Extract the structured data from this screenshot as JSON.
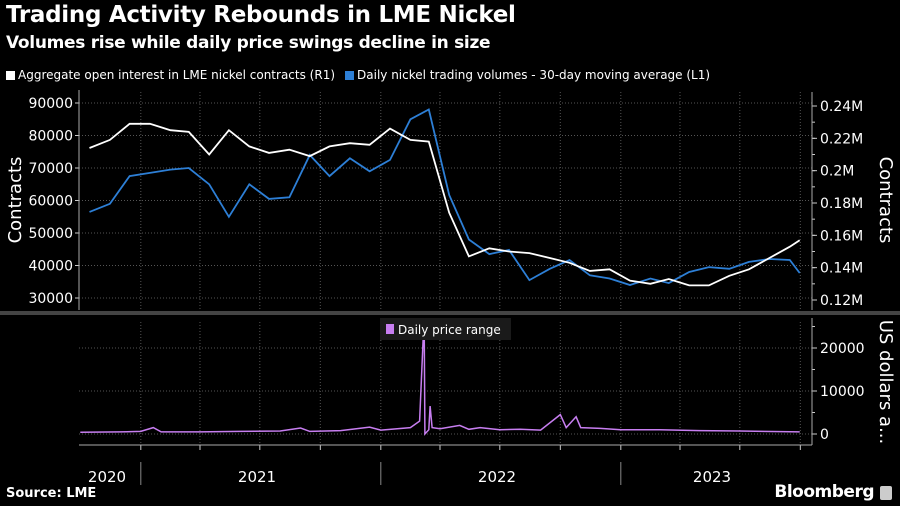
{
  "title": "Trading Activity Rebounds in LME Nickel",
  "subtitle": "Volumes rise while daily price swings decline in size",
  "source": "Source: LME",
  "brand": "Bloomberg",
  "colors": {
    "open_interest": "#ffffff",
    "volumes": "#2d7fd6",
    "price_range": "#c77ef0",
    "background": "#000000"
  },
  "chart_data": [
    {
      "type": "line",
      "legend_placement": "top-left",
      "grid": true,
      "ylabel_left": "Contracts",
      "ylabel_right": "Contracts",
      "ylim_left": [
        27000,
        91000
      ],
      "ylim_right": [
        0.117,
        0.245
      ],
      "yticks_left": [
        "30000",
        "40000",
        "50000",
        "60000",
        "70000",
        "80000",
        "90000"
      ],
      "yticks_right": [
        "0.12M",
        "0.14M",
        "0.16M",
        "0.18M",
        "0.2M",
        "0.22M",
        "0.24M"
      ],
      "x": [
        "2020-10",
        "2020-11",
        "2020-12",
        "2021-01",
        "2021-02",
        "2021-03",
        "2021-04",
        "2021-05",
        "2021-06",
        "2021-07",
        "2021-08",
        "2021-09",
        "2021-10",
        "2021-11",
        "2021-12",
        "2022-01",
        "2022-02",
        "2022-03",
        "2022-04",
        "2022-05",
        "2022-06",
        "2022-07",
        "2022-08",
        "2022-09",
        "2022-10",
        "2022-11",
        "2022-12",
        "2023-01",
        "2023-02",
        "2023-03",
        "2023-04",
        "2023-05",
        "2023-06",
        "2023-07",
        "2023-08",
        "2023-09",
        "2023-09-30"
      ],
      "series": [
        {
          "name": "Aggregate open interest in LME nickel contracts (R1)",
          "axis": "right",
          "unit": "M contracts",
          "values": [
            0.214,
            0.219,
            0.229,
            0.229,
            0.225,
            0.224,
            0.21,
            0.225,
            0.215,
            0.211,
            0.213,
            0.209,
            0.215,
            0.217,
            0.216,
            0.226,
            0.219,
            0.218,
            0.174,
            0.147,
            0.152,
            0.15,
            0.149,
            0.146,
            0.143,
            0.138,
            0.139,
            0.132,
            0.13,
            0.133,
            0.129,
            0.129,
            0.135,
            0.139,
            0.146,
            0.153,
            0.157
          ]
        },
        {
          "name": "Daily nickel trading volumes - 30-day moving average (L1)",
          "axis": "left",
          "unit": "contracts",
          "values": [
            56500,
            59000,
            67500,
            68500,
            69500,
            70000,
            65000,
            55000,
            65000,
            60500,
            61000,
            74000,
            67500,
            73000,
            69000,
            72500,
            85000,
            88000,
            61700,
            48000,
            43500,
            44800,
            35500,
            39000,
            41700,
            37000,
            36000,
            34000,
            36000,
            34600,
            38000,
            39500,
            39000,
            41100,
            42000,
            41700,
            37700
          ]
        }
      ]
    },
    {
      "type": "line",
      "legend_placement": "top-center",
      "grid": true,
      "ylabel_right": "US dollars a...",
      "ylim": [
        0,
        26000
      ],
      "yticks_right": [
        "0",
        "10000",
        "20000"
      ],
      "xtick_labels": [
        "2020",
        "2021",
        "2022",
        "2023"
      ],
      "series": [
        {
          "name": "Daily price range",
          "points": [
            [
              "2020-10-01",
              400
            ],
            [
              "2020-12-01",
              500
            ],
            [
              "2021-01-01",
              600
            ],
            [
              "2021-01-20",
              1500
            ],
            [
              "2021-02-01",
              500
            ],
            [
              "2021-04-01",
              500
            ],
            [
              "2021-06-01",
              600
            ],
            [
              "2021-08-01",
              700
            ],
            [
              "2021-09-01",
              1400
            ],
            [
              "2021-09-15",
              600
            ],
            [
              "2021-11-01",
              800
            ],
            [
              "2021-12-15",
              1600
            ],
            [
              "2022-01-01",
              900
            ],
            [
              "2022-02-15",
              1500
            ],
            [
              "2022-03-01",
              3000
            ],
            [
              "2022-03-07",
              24000
            ],
            [
              "2022-03-08",
              25000
            ],
            [
              "2022-03-09",
              0
            ],
            [
              "2022-03-15",
              1000
            ],
            [
              "2022-03-17",
              6500
            ],
            [
              "2022-03-20",
              1500
            ],
            [
              "2022-04-01",
              1200
            ],
            [
              "2022-05-01",
              2000
            ],
            [
              "2022-05-15",
              1100
            ],
            [
              "2022-06-01",
              1500
            ],
            [
              "2022-07-01",
              1000
            ],
            [
              "2022-08-01",
              1100
            ],
            [
              "2022-09-01",
              900
            ],
            [
              "2022-10-01",
              4500
            ],
            [
              "2022-10-10",
              1500
            ],
            [
              "2022-10-25",
              4000
            ],
            [
              "2022-11-01",
              1500
            ],
            [
              "2022-12-01",
              1300
            ],
            [
              "2023-01-01",
              1000
            ],
            [
              "2023-03-01",
              1000
            ],
            [
              "2023-05-01",
              800
            ],
            [
              "2023-07-01",
              700
            ],
            [
              "2023-09-30",
              500
            ]
          ]
        }
      ]
    }
  ]
}
